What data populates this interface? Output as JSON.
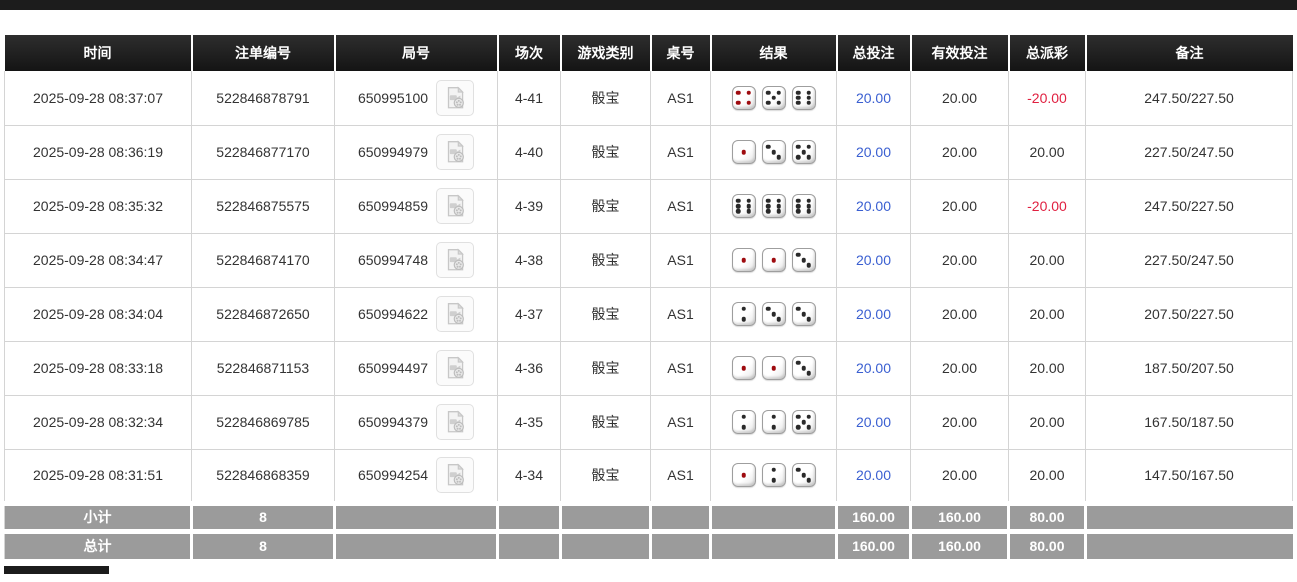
{
  "colors": {
    "header_bg": "#1c1c1c",
    "footer_bg": "#9b9b9b",
    "bet_blue": "#3a5fd1",
    "negative_red": "#e02040",
    "pip_red": "#9e0b0f",
    "pip_black": "#2a2a2a"
  },
  "icons": {
    "video": "video-file-icon"
  },
  "table": {
    "columns": [
      {
        "key": "time",
        "label": "时间"
      },
      {
        "key": "bet_id",
        "label": "注单编号"
      },
      {
        "key": "round_id",
        "label": "局号"
      },
      {
        "key": "session",
        "label": "场次"
      },
      {
        "key": "game_type",
        "label": "游戏类别"
      },
      {
        "key": "table_no",
        "label": "桌号"
      },
      {
        "key": "result",
        "label": "结果"
      },
      {
        "key": "total_bet",
        "label": "总投注"
      },
      {
        "key": "valid_bet",
        "label": "有效投注"
      },
      {
        "key": "payout",
        "label": "总派彩"
      },
      {
        "key": "remark",
        "label": "备注"
      }
    ],
    "rows": [
      {
        "time": "2025-09-28 08:37:07",
        "bet_id": "522846878791",
        "round_id": "650995100",
        "session": "4-41",
        "game_type": "骰宝",
        "table_no": "AS1",
        "dice": [
          4,
          5,
          6
        ],
        "total_bet": "20.00",
        "valid_bet": "20.00",
        "payout": "-20.00",
        "remark": "247.50/227.50"
      },
      {
        "time": "2025-09-28 08:36:19",
        "bet_id": "522846877170",
        "round_id": "650994979",
        "session": "4-40",
        "game_type": "骰宝",
        "table_no": "AS1",
        "dice": [
          1,
          3,
          5
        ],
        "total_bet": "20.00",
        "valid_bet": "20.00",
        "payout": "20.00",
        "remark": "227.50/247.50"
      },
      {
        "time": "2025-09-28 08:35:32",
        "bet_id": "522846875575",
        "round_id": "650994859",
        "session": "4-39",
        "game_type": "骰宝",
        "table_no": "AS1",
        "dice": [
          6,
          6,
          6
        ],
        "total_bet": "20.00",
        "valid_bet": "20.00",
        "payout": "-20.00",
        "remark": "247.50/227.50"
      },
      {
        "time": "2025-09-28 08:34:47",
        "bet_id": "522846874170",
        "round_id": "650994748",
        "session": "4-38",
        "game_type": "骰宝",
        "table_no": "AS1",
        "dice": [
          1,
          1,
          3
        ],
        "total_bet": "20.00",
        "valid_bet": "20.00",
        "payout": "20.00",
        "remark": "227.50/247.50"
      },
      {
        "time": "2025-09-28 08:34:04",
        "bet_id": "522846872650",
        "round_id": "650994622",
        "session": "4-37",
        "game_type": "骰宝",
        "table_no": "AS1",
        "dice": [
          2,
          3,
          3
        ],
        "total_bet": "20.00",
        "valid_bet": "20.00",
        "payout": "20.00",
        "remark": "207.50/227.50"
      },
      {
        "time": "2025-09-28 08:33:18",
        "bet_id": "522846871153",
        "round_id": "650994497",
        "session": "4-36",
        "game_type": "骰宝",
        "table_no": "AS1",
        "dice": [
          1,
          1,
          3
        ],
        "total_bet": "20.00",
        "valid_bet": "20.00",
        "payout": "20.00",
        "remark": "187.50/207.50"
      },
      {
        "time": "2025-09-28 08:32:34",
        "bet_id": "522846869785",
        "round_id": "650994379",
        "session": "4-35",
        "game_type": "骰宝",
        "table_no": "AS1",
        "dice": [
          2,
          2,
          5
        ],
        "total_bet": "20.00",
        "valid_bet": "20.00",
        "payout": "20.00",
        "remark": "167.50/187.50"
      },
      {
        "time": "2025-09-28 08:31:51",
        "bet_id": "522846868359",
        "round_id": "650994254",
        "session": "4-34",
        "game_type": "骰宝",
        "table_no": "AS1",
        "dice": [
          1,
          2,
          3
        ],
        "total_bet": "20.00",
        "valid_bet": "20.00",
        "payout": "20.00",
        "remark": "147.50/167.50"
      }
    ],
    "footer": [
      {
        "label": "小计",
        "bet_count": "8",
        "total_bet": "160.00",
        "valid_bet": "160.00",
        "payout": "80.00"
      },
      {
        "label": "总计",
        "bet_count": "8",
        "total_bet": "160.00",
        "valid_bet": "160.00",
        "payout": "80.00"
      }
    ]
  }
}
